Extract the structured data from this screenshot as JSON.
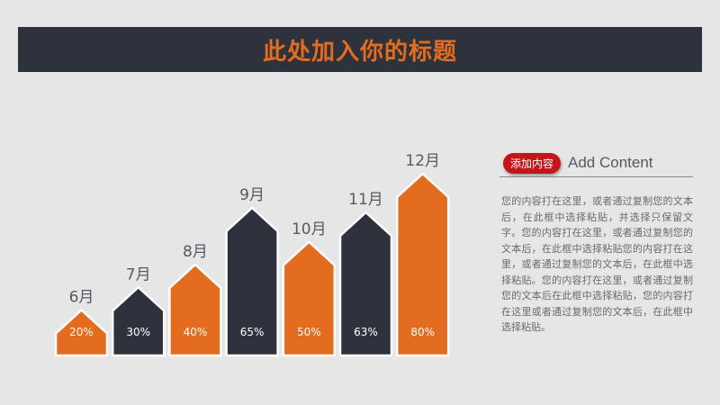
{
  "header": {
    "title": "此处加入你的标题"
  },
  "colors": {
    "orange": "#e46c1e",
    "dark": "#2e323c",
    "background": "#e6e6e6",
    "accent_red": "#c3151a"
  },
  "chart_data": {
    "type": "bar",
    "categories": [
      "6月",
      "7月",
      "8月",
      "9月",
      "10月",
      "11月",
      "12月"
    ],
    "values": [
      20,
      30,
      40,
      65,
      50,
      63,
      80
    ],
    "value_labels": [
      "20%",
      "30%",
      "40%",
      "65%",
      "50%",
      "63%",
      "80%"
    ],
    "series_colors": [
      "#e46c1e",
      "#2e323c",
      "#e46c1e",
      "#2e323c",
      "#e46c1e",
      "#2e323c",
      "#e46c1e"
    ],
    "ylim": [
      0,
      100
    ],
    "grid": false,
    "legend": "none"
  },
  "panel": {
    "tag": "添加内容",
    "subtitle": "Add Content",
    "body": "您的内容打在这里，或者通过复制您的文本后，在此框中选择粘贴，并选择只保留文字。您的内容打在这里，或者通过复制您的文本后，在此框中选择粘贴您的内容打在这里，或者通过复制您的文本后，在此框中选择粘贴。您的内容打在这里，或者通过复制您的文本后在此框中选择粘贴，您的内容打在这里或者通过复制您的文本后，在此框中选择粘贴。"
  }
}
